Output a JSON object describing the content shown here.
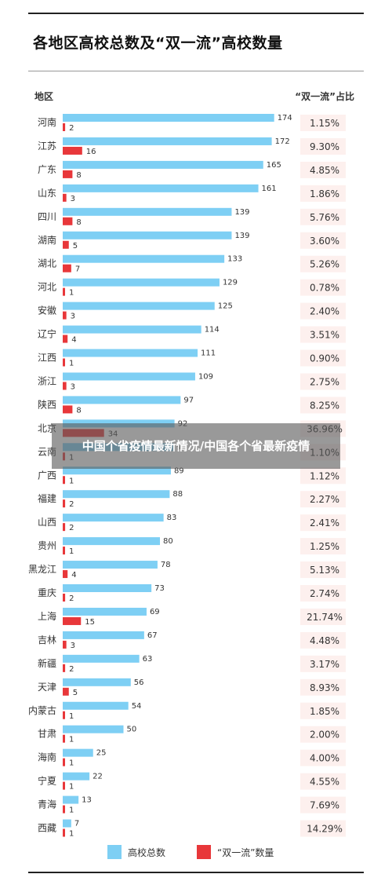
{
  "chart_data": {
    "type": "bar",
    "title": "各地区高校总数及“双一流”高校数量",
    "region_header": "地区",
    "ratio_header": "“双一流”占比",
    "categories": [
      "河南",
      "江苏",
      "广东",
      "山东",
      "四川",
      "湖南",
      "湖北",
      "河北",
      "安徽",
      "辽宁",
      "江西",
      "浙江",
      "陕西",
      "北京",
      "云南",
      "广西",
      "福建",
      "山西",
      "贵州",
      "黑龙江",
      "重庆",
      "上海",
      "吉林",
      "新疆",
      "天津",
      "内蒙古",
      "甘肃",
      "海南",
      "宁夏",
      "青海",
      "西藏"
    ],
    "series": [
      {
        "name": "高校总数",
        "color": "#7ecff4",
        "values": [
          174,
          172,
          165,
          161,
          139,
          139,
          133,
          129,
          125,
          114,
          111,
          109,
          97,
          92,
          91,
          89,
          88,
          83,
          80,
          78,
          73,
          69,
          67,
          63,
          56,
          54,
          50,
          25,
          22,
          13,
          7
        ]
      },
      {
        "name": "“双一流”数量",
        "color": "#e8373a",
        "values": [
          2,
          16,
          8,
          3,
          8,
          5,
          7,
          1,
          3,
          4,
          1,
          3,
          8,
          34,
          1,
          1,
          2,
          2,
          1,
          4,
          2,
          15,
          3,
          2,
          5,
          1,
          1,
          1,
          1,
          1,
          1
        ]
      }
    ],
    "ratios": [
      "1.15%",
      "9.30%",
      "4.85%",
      "1.86%",
      "5.76%",
      "3.60%",
      "5.26%",
      "0.78%",
      "2.40%",
      "3.51%",
      "0.90%",
      "2.75%",
      "8.25%",
      "36.96%",
      "1.10%",
      "1.12%",
      "2.27%",
      "2.41%",
      "1.25%",
      "5.13%",
      "2.74%",
      "21.74%",
      "4.48%",
      "3.17%",
      "8.93%",
      "1.85%",
      "2.00%",
      "4.00%",
      "4.55%",
      "7.69%",
      "14.29%"
    ],
    "ratio_bg": "#fdf0ee",
    "legend_position": "bottom-center",
    "grid": false
  },
  "overlay_text": "中国个省疫情最新情况/中国各个省最新疫情"
}
